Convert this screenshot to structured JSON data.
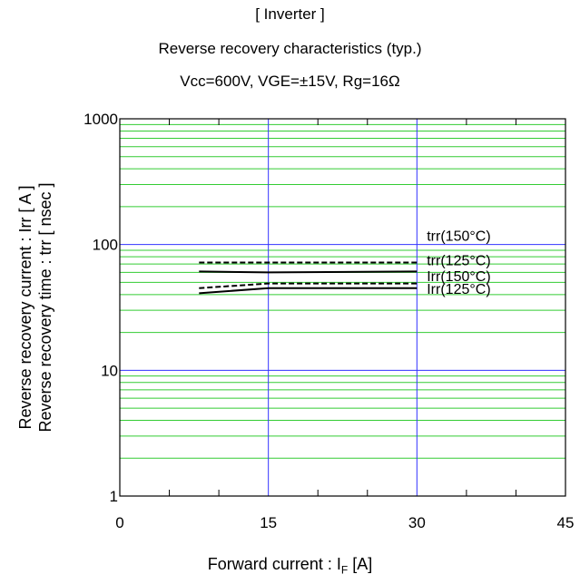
{
  "titles": {
    "line1": "[ Inverter ]",
    "line2": "Reverse recovery characteristics  (typ.)",
    "line3": "Vcc=600V,   VGE=±15V,   Rg=16Ω"
  },
  "chart_data": {
    "type": "line",
    "x_axis": {
      "label_prefix": "Forward current : I",
      "label_sub": "F",
      "label_suffix": " [A]",
      "range": [
        0,
        45
      ],
      "ticks": [
        "0",
        "15",
        "30",
        "45"
      ],
      "tick_values": [
        0,
        15,
        30,
        45
      ]
    },
    "y_axis": {
      "label_line1": "Reverse recovery current  :  Irr  [ A ]",
      "label_line2": "Reverse recovery time  :  trr  [ nsec ]",
      "scale": "log",
      "range": [
        1,
        1000
      ],
      "ticks": [
        "1",
        "10",
        "100",
        "1000"
      ],
      "tick_values": [
        1,
        10,
        100,
        1000
      ]
    },
    "grid": true,
    "series": [
      {
        "name": "trr(150°C)",
        "style": "dashed",
        "x": [
          8,
          15,
          30
        ],
        "y": [
          72,
          72,
          72
        ]
      },
      {
        "name": "trr(125°C)",
        "style": "solid",
        "x": [
          8,
          15,
          30
        ],
        "y": [
          61,
          60,
          61
        ]
      },
      {
        "name": "Irr(150°C)",
        "style": "dashed",
        "x": [
          8,
          15,
          30
        ],
        "y": [
          45,
          49,
          49
        ]
      },
      {
        "name": "Irr(125°C)",
        "style": "solid",
        "x": [
          8,
          15,
          30
        ],
        "y": [
          41,
          45,
          45
        ]
      }
    ],
    "annotations": [
      {
        "text": "trr(150°C)",
        "x": 31,
        "y": 100
      },
      {
        "text": "trr(125°C)",
        "x": 31,
        "y": 64
      },
      {
        "text": "Irr(150°C)",
        "x": 31,
        "y": 48
      },
      {
        "text": "Irr(125°C)",
        "x": 31,
        "y": 38
      }
    ],
    "colors": {
      "minor_grid": "#33cc33",
      "major_grid": "#3333ff",
      "series": "#000000"
    }
  }
}
